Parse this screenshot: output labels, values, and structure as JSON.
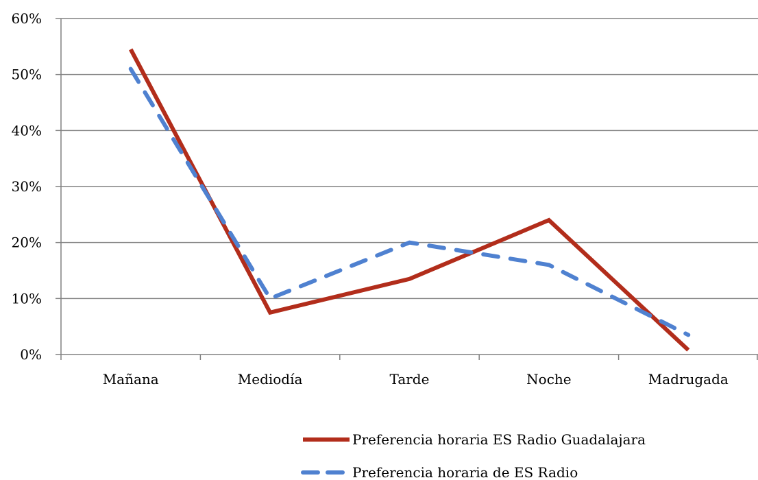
{
  "chart_data": {
    "type": "line",
    "categories": [
      "Mañana",
      "Mediodía",
      "Tarde",
      "Noche",
      "Madrugada"
    ],
    "ylim": [
      0,
      0.6
    ],
    "yticks": [
      0,
      0.1,
      0.2,
      0.3,
      0.4,
      0.5,
      0.6
    ],
    "ytick_labels": [
      "0%",
      "10%",
      "20%",
      "30%",
      "40%",
      "50%",
      "60%"
    ],
    "grid": true,
    "legend_position": "bottom-right",
    "series": [
      {
        "name": "Preferencia horaria ES Radio Guadalajara",
        "values": [
          0.545,
          0.075,
          0.135,
          0.24,
          0.008
        ],
        "color": "#b22d1b",
        "style": "solid"
      },
      {
        "name": "Preferencia horaria de ES Radio",
        "values": [
          0.51,
          0.1,
          0.2,
          0.16,
          0.035
        ],
        "color": "#4f81d0",
        "style": "dashed"
      }
    ]
  }
}
